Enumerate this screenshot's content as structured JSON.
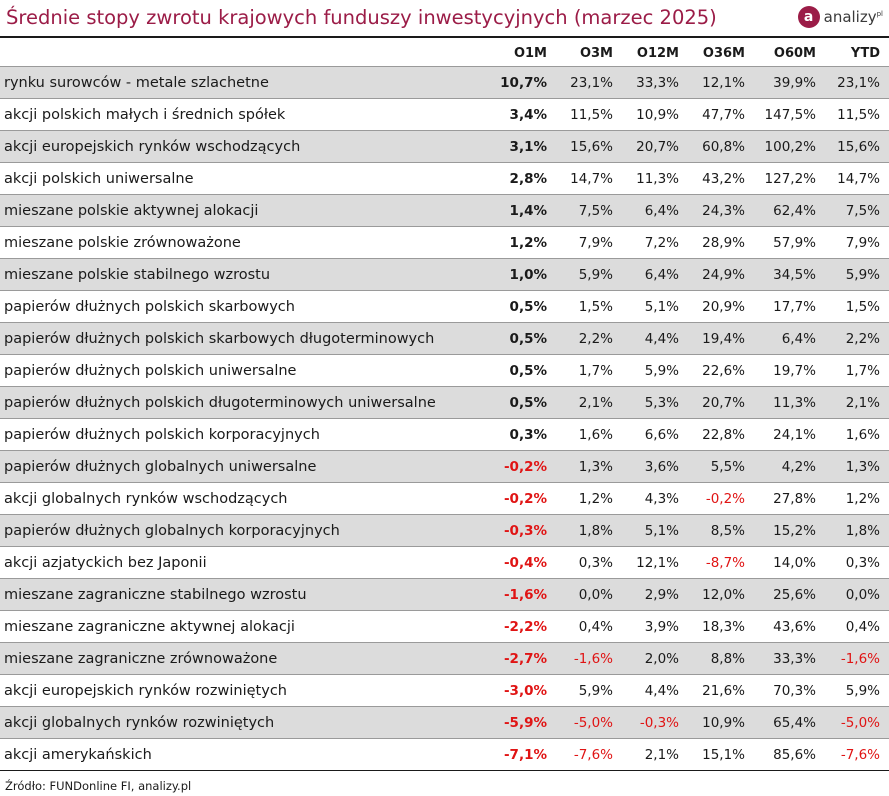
{
  "title": "Średnie stopy zwrotu krajowych funduszy inwestycyjnych (marzec 2025)",
  "logo": {
    "icon": "a",
    "text": "analizy",
    "superscript": "pl"
  },
  "source": "Źródło: FUNDonline FI, analizy.pl",
  "colors": {
    "title": "#9b1c47",
    "negative": "#e01414",
    "row_shade": "#dcdcdc"
  },
  "chart_data": {
    "type": "table",
    "title": "Średnie stopy zwrotu krajowych funduszy inwestycyjnych (marzec 2025)",
    "columns": [
      "",
      "O1M",
      "O3M",
      "O12M",
      "O36M",
      "O60M",
      "YTD"
    ],
    "rows": [
      {
        "name": "rynku surowców - metale szlachetne",
        "values": [
          "10,7%",
          "23,1%",
          "33,3%",
          "12,1%",
          "39,9%",
          "23,1%"
        ]
      },
      {
        "name": "akcji polskich małych i średnich spółek",
        "values": [
          "3,4%",
          "11,5%",
          "10,9%",
          "47,7%",
          "147,5%",
          "11,5%"
        ]
      },
      {
        "name": "akcji europejskich rynków wschodzących",
        "values": [
          "3,1%",
          "15,6%",
          "20,7%",
          "60,8%",
          "100,2%",
          "15,6%"
        ]
      },
      {
        "name": "akcji polskich uniwersalne",
        "values": [
          "2,8%",
          "14,7%",
          "11,3%",
          "43,2%",
          "127,2%",
          "14,7%"
        ]
      },
      {
        "name": "mieszane polskie aktywnej alokacji",
        "values": [
          "1,4%",
          "7,5%",
          "6,4%",
          "24,3%",
          "62,4%",
          "7,5%"
        ]
      },
      {
        "name": "mieszane polskie zrównoważone",
        "values": [
          "1,2%",
          "7,9%",
          "7,2%",
          "28,9%",
          "57,9%",
          "7,9%"
        ]
      },
      {
        "name": "mieszane polskie stabilnego wzrostu",
        "values": [
          "1,0%",
          "5,9%",
          "6,4%",
          "24,9%",
          "34,5%",
          "5,9%"
        ]
      },
      {
        "name": "papierów dłużnych polskich skarbowych",
        "values": [
          "0,5%",
          "1,5%",
          "5,1%",
          "20,9%",
          "17,7%",
          "1,5%"
        ]
      },
      {
        "name": "papierów dłużnych polskich skarbowych długoterminowych",
        "values": [
          "0,5%",
          "2,2%",
          "4,4%",
          "19,4%",
          "6,4%",
          "2,2%"
        ]
      },
      {
        "name": "papierów dłużnych polskich uniwersalne",
        "values": [
          "0,5%",
          "1,7%",
          "5,9%",
          "22,6%",
          "19,7%",
          "1,7%"
        ]
      },
      {
        "name": "papierów dłużnych polskich długoterminowych uniwersalne",
        "values": [
          "0,5%",
          "2,1%",
          "5,3%",
          "20,7%",
          "11,3%",
          "2,1%"
        ]
      },
      {
        "name": "papierów dłużnych polskich korporacyjnych",
        "values": [
          "0,3%",
          "1,6%",
          "6,6%",
          "22,8%",
          "24,1%",
          "1,6%"
        ]
      },
      {
        "name": "papierów dłużnych globalnych uniwersalne",
        "values": [
          "-0,2%",
          "1,3%",
          "3,6%",
          "5,5%",
          "4,2%",
          "1,3%"
        ]
      },
      {
        "name": "akcji globalnych rynków wschodzących",
        "values": [
          "-0,2%",
          "1,2%",
          "4,3%",
          "-0,2%",
          "27,8%",
          "1,2%"
        ]
      },
      {
        "name": "papierów dłużnych globalnych korporacyjnych",
        "values": [
          "-0,3%",
          "1,8%",
          "5,1%",
          "8,5%",
          "15,2%",
          "1,8%"
        ]
      },
      {
        "name": "akcji azjatyckich bez Japonii",
        "values": [
          "-0,4%",
          "0,3%",
          "12,1%",
          "-8,7%",
          "14,0%",
          "0,3%"
        ]
      },
      {
        "name": "mieszane zagraniczne stabilnego wzrostu",
        "values": [
          "-1,6%",
          "0,0%",
          "2,9%",
          "12,0%",
          "25,6%",
          "0,0%"
        ]
      },
      {
        "name": "mieszane zagraniczne aktywnej alokacji",
        "values": [
          "-2,2%",
          "0,4%",
          "3,9%",
          "18,3%",
          "43,6%",
          "0,4%"
        ]
      },
      {
        "name": "mieszane zagraniczne zrównoważone",
        "values": [
          "-2,7%",
          "-1,6%",
          "2,0%",
          "8,8%",
          "33,3%",
          "-1,6%"
        ]
      },
      {
        "name": "akcji europejskich rynków rozwiniętych",
        "values": [
          "-3,0%",
          "5,9%",
          "4,4%",
          "21,6%",
          "70,3%",
          "5,9%"
        ]
      },
      {
        "name": "akcji globalnych rynków rozwiniętych",
        "values": [
          "-5,9%",
          "-5,0%",
          "-0,3%",
          "10,9%",
          "65,4%",
          "-5,0%"
        ]
      },
      {
        "name": "akcji amerykańskich",
        "values": [
          "-7,1%",
          "-7,6%",
          "2,1%",
          "15,1%",
          "85,6%",
          "-7,6%"
        ]
      }
    ]
  }
}
